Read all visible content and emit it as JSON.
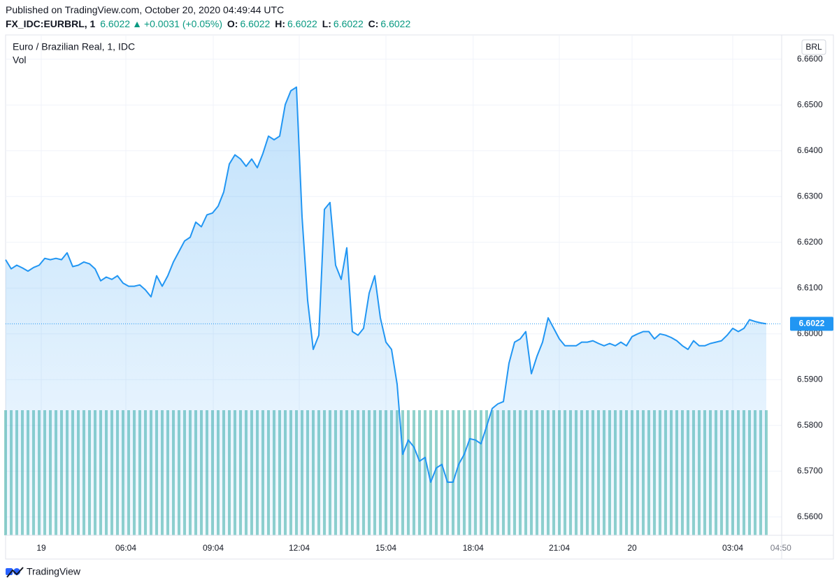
{
  "header": {
    "published": "Published on TradingView.com, October 20, 2020 04:49:44 UTC",
    "symbol": "FX_IDC:EURBRL, 1",
    "last": "6.6022",
    "arrow": "▲",
    "change": "+0.0031 (+0.05%)",
    "ohlc": [
      {
        "label": "O:",
        "value": "6.6022"
      },
      {
        "label": "H:",
        "value": "6.6022"
      },
      {
        "label": "L:",
        "value": "6.6022"
      },
      {
        "label": "C:",
        "value": "6.6022"
      }
    ]
  },
  "chart_data": {
    "type": "area",
    "title": "Euro / Brazilian Real, 1, IDC",
    "currency": "BRL",
    "color": "#2196f3",
    "values": [
      6.6162,
      6.6142,
      6.615,
      6.6144,
      6.6137,
      6.6145,
      6.615,
      6.6165,
      6.6162,
      6.6165,
      6.6162,
      6.6177,
      6.6147,
      6.615,
      6.6157,
      6.6153,
      6.6142,
      6.6116,
      6.6124,
      6.6119,
      6.6127,
      6.6111,
      6.6104,
      6.6104,
      6.6107,
      6.6096,
      6.6081,
      6.6127,
      6.6104,
      6.6127,
      6.6157,
      6.618,
      6.6203,
      6.6211,
      6.6244,
      6.6234,
      6.626,
      6.6264,
      6.6279,
      6.631,
      6.6371,
      6.6391,
      6.6382,
      6.6366,
      6.6382,
      6.6363,
      6.6394,
      6.6432,
      6.6424,
      6.6432,
      6.6501,
      6.6531,
      6.6539,
      6.6256,
      6.6073,
      6.5966,
      6.5997,
      6.6272,
      6.6287,
      6.615,
      6.6119,
      6.6188,
      6.6005,
      6.5997,
      6.6012,
      6.6089,
      6.6127,
      6.6035,
      6.5982,
      6.5966,
      6.589,
      6.5737,
      6.5768,
      6.5753,
      6.5722,
      6.573,
      6.5676,
      6.5707,
      6.5715,
      6.5676,
      6.5676,
      6.5715,
      6.5737,
      6.5771,
      6.5768,
      6.576,
      6.5798,
      6.5837,
      6.5847,
      6.5852,
      6.5936,
      6.5982,
      6.5989,
      6.6005,
      6.5913,
      6.5951,
      6.5982,
      6.6035,
      6.6012,
      6.5989,
      6.5974,
      6.5974,
      6.5974,
      6.5982,
      6.5982,
      6.5985,
      6.5979,
      6.5974,
      6.5979,
      6.5974,
      6.5982,
      6.5974,
      6.5994,
      6.6,
      6.6005,
      6.6005,
      6.5989,
      6.6,
      6.5997,
      6.5992,
      6.5985,
      6.5974,
      6.5966,
      6.5985,
      6.5974,
      6.5974,
      6.5979,
      6.5982,
      6.5985,
      6.5997,
      6.6012,
      6.6005,
      6.6012,
      6.6031,
      6.6027,
      6.6024,
      6.6022
    ],
    "volume": {
      "name": "Vol",
      "color": "#26a69a",
      "values": [
        1,
        1,
        1,
        1,
        1,
        1,
        1,
        1,
        1,
        1,
        1,
        1,
        1,
        1,
        1,
        1,
        1,
        1,
        1,
        1,
        1,
        1,
        1,
        1,
        1,
        1,
        1,
        1,
        1,
        1,
        1,
        1,
        1,
        1,
        1,
        1,
        1,
        1,
        1,
        1,
        1,
        1,
        1,
        1,
        1,
        1,
        1,
        1,
        1,
        1,
        1,
        1,
        1,
        1,
        1,
        1,
        1,
        1,
        1,
        1,
        1,
        1,
        1,
        1,
        1,
        1,
        1,
        1,
        1,
        1,
        1,
        1,
        1,
        1,
        1,
        1,
        1,
        1,
        1,
        1,
        1,
        1,
        1,
        1,
        1,
        1,
        1,
        1,
        1,
        1,
        1,
        1,
        1,
        1,
        1,
        1,
        1,
        1,
        1,
        1,
        1,
        1,
        1,
        1,
        1,
        1,
        1,
        1,
        1,
        1,
        1,
        1,
        1,
        1,
        1,
        1,
        1,
        1,
        1,
        1,
        1,
        1,
        1,
        1,
        1,
        1,
        1,
        1,
        1,
        1,
        1,
        1,
        1,
        1,
        1,
        1,
        1
      ]
    },
    "xlim": [
      0,
      138.75
    ],
    "xticks": [
      {
        "value": 6.375,
        "label": "19"
      },
      {
        "value": 21.5,
        "label": "06:04"
      },
      {
        "value": 37.125,
        "label": "09:04"
      },
      {
        "value": 52.5,
        "label": "12:04"
      },
      {
        "value": 68,
        "label": "15:04"
      },
      {
        "value": 83.6,
        "label": "18:04"
      },
      {
        "value": 99,
        "label": "21:04"
      },
      {
        "value": 112,
        "label": "20"
      },
      {
        "value": 130,
        "label": "03:04"
      },
      {
        "value": 138.6,
        "label": "04:50"
      }
    ],
    "ylim": [
      6.556,
      6.6653
    ],
    "yticks": [
      {
        "value": 6.56,
        "label": "6.5600"
      },
      {
        "value": 6.57,
        "label": "6.5700"
      },
      {
        "value": 6.58,
        "label": "6.5800"
      },
      {
        "value": 6.59,
        "label": "6.5900"
      },
      {
        "value": 6.6,
        "label": "6.6000"
      },
      {
        "value": 6.61,
        "label": "6.6100"
      },
      {
        "value": 6.62,
        "label": "6.6200"
      },
      {
        "value": 6.63,
        "label": "6.6300"
      },
      {
        "value": 6.64,
        "label": "6.6400"
      },
      {
        "value": 6.65,
        "label": "6.6500"
      },
      {
        "value": 6.66,
        "label": "6.6600"
      }
    ],
    "grid": true
  }
}
